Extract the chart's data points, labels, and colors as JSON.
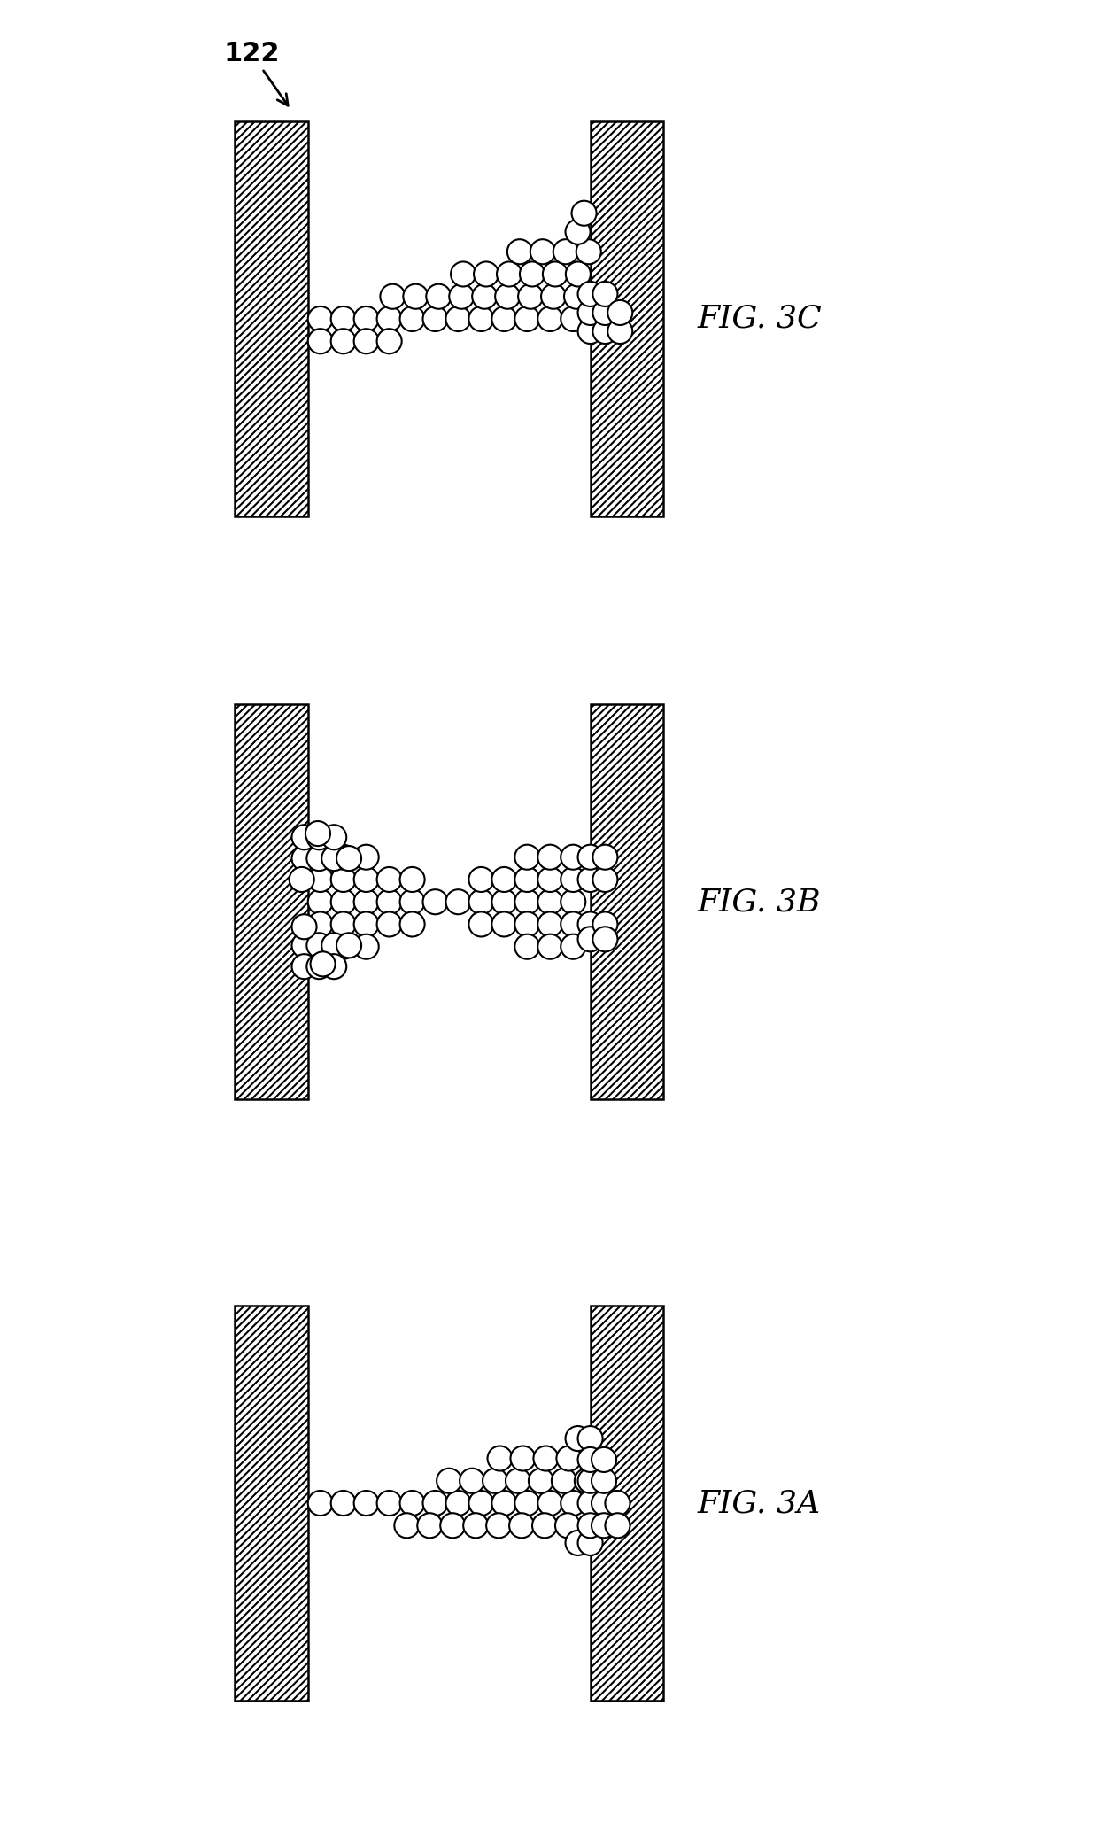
{
  "fig_labels": [
    "FIG. 3C",
    "FIG. 3B",
    "FIG. 3A"
  ],
  "bg_color": "#ffffff",
  "electrode_hatch": "////",
  "electrode_edge_color": "#000000",
  "circle_face_color": "#ffffff",
  "circle_edge_color": "#000000",
  "circle_lw": 1.5,
  "label_122": "122",
  "fig_width": 12.4,
  "fig_height": 20.57,
  "label_fontsize": 26,
  "label_122_fontsize": 22
}
